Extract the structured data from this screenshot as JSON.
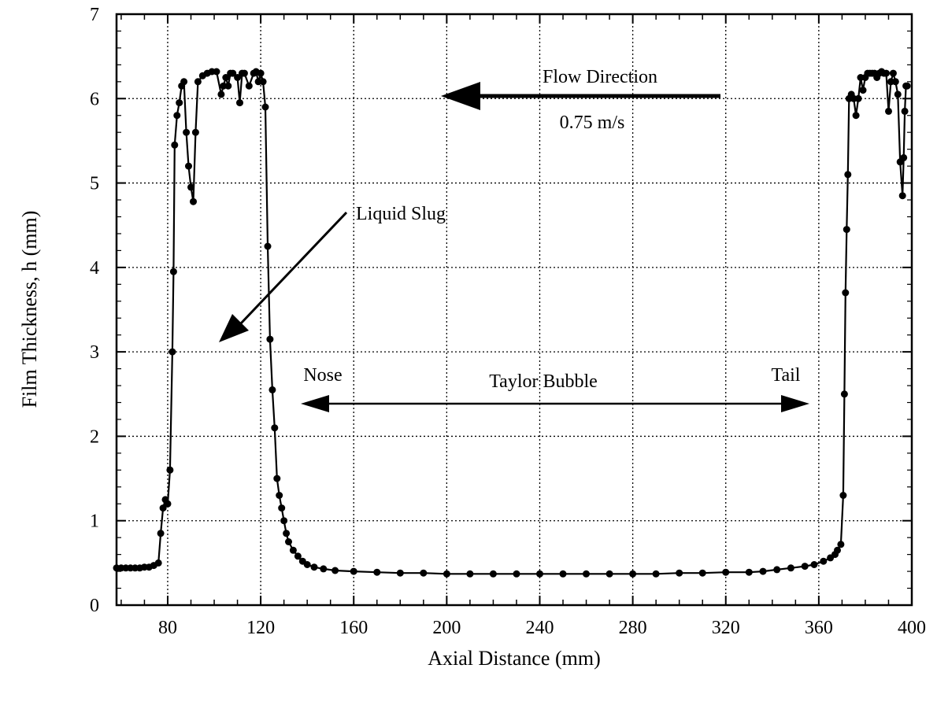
{
  "chart_data": {
    "type": "line",
    "title": "",
    "xlabel": "Axial Distance (mm)",
    "ylabel": "Film Thickness, h  (mm)",
    "xlim": [
      58,
      400
    ],
    "ylim": [
      0,
      7
    ],
    "xticks": [
      80,
      120,
      160,
      200,
      240,
      280,
      320,
      360,
      400
    ],
    "yticks": [
      0,
      1,
      2,
      3,
      4,
      5,
      6,
      7
    ],
    "grid": true,
    "series": [
      {
        "color": "#000000",
        "marker": "circle",
        "points": [
          [
            58,
            0.44
          ],
          [
            60,
            0.44
          ],
          [
            62,
            0.44
          ],
          [
            64,
            0.44
          ],
          [
            66,
            0.44
          ],
          [
            68,
            0.44
          ],
          [
            70,
            0.45
          ],
          [
            72,
            0.45
          ],
          [
            74,
            0.47
          ],
          [
            76,
            0.5
          ],
          [
            77,
            0.85
          ],
          [
            78,
            1.15
          ],
          [
            79,
            1.25
          ],
          [
            80,
            1.2
          ],
          [
            81,
            1.6
          ],
          [
            82,
            3.0
          ],
          [
            82.5,
            3.95
          ],
          [
            83,
            5.45
          ],
          [
            84,
            5.8
          ],
          [
            85,
            5.95
          ],
          [
            86,
            6.15
          ],
          [
            87,
            6.2
          ],
          [
            88,
            5.6
          ],
          [
            89,
            5.2
          ],
          [
            90,
            4.95
          ],
          [
            91,
            4.78
          ],
          [
            92,
            5.6
          ],
          [
            93,
            6.2
          ],
          [
            95,
            6.27
          ],
          [
            97,
            6.3
          ],
          [
            99,
            6.32
          ],
          [
            101,
            6.32
          ],
          [
            103,
            6.05
          ],
          [
            104,
            6.15
          ],
          [
            105,
            6.25
          ],
          [
            106,
            6.15
          ],
          [
            107,
            6.3
          ],
          [
            108,
            6.3
          ],
          [
            110,
            6.25
          ],
          [
            111,
            5.95
          ],
          [
            112,
            6.3
          ],
          [
            113,
            6.3
          ],
          [
            115,
            6.15
          ],
          [
            117,
            6.3
          ],
          [
            118,
            6.32
          ],
          [
            119,
            6.2
          ],
          [
            120,
            6.3
          ],
          [
            121,
            6.2
          ],
          [
            122,
            5.9
          ],
          [
            123,
            4.25
          ],
          [
            124,
            3.15
          ],
          [
            125,
            2.55
          ],
          [
            126,
            2.1
          ],
          [
            127,
            1.5
          ],
          [
            128,
            1.3
          ],
          [
            129,
            1.15
          ],
          [
            130,
            1.0
          ],
          [
            131,
            0.85
          ],
          [
            132,
            0.75
          ],
          [
            134,
            0.65
          ],
          [
            136,
            0.58
          ],
          [
            138,
            0.52
          ],
          [
            140,
            0.48
          ],
          [
            143,
            0.45
          ],
          [
            147,
            0.43
          ],
          [
            152,
            0.41
          ],
          [
            160,
            0.4
          ],
          [
            170,
            0.39
          ],
          [
            180,
            0.38
          ],
          [
            190,
            0.38
          ],
          [
            200,
            0.37
          ],
          [
            210,
            0.37
          ],
          [
            220,
            0.37
          ],
          [
            230,
            0.37
          ],
          [
            240,
            0.37
          ],
          [
            250,
            0.37
          ],
          [
            260,
            0.37
          ],
          [
            270,
            0.37
          ],
          [
            280,
            0.37
          ],
          [
            290,
            0.37
          ],
          [
            300,
            0.38
          ],
          [
            310,
            0.38
          ],
          [
            320,
            0.39
          ],
          [
            330,
            0.39
          ],
          [
            336,
            0.4
          ],
          [
            342,
            0.42
          ],
          [
            348,
            0.44
          ],
          [
            354,
            0.46
          ],
          [
            358,
            0.48
          ],
          [
            362,
            0.52
          ],
          [
            365,
            0.56
          ],
          [
            367,
            0.6
          ],
          [
            368,
            0.65
          ],
          [
            369.5,
            0.72
          ],
          [
            370.5,
            1.3
          ],
          [
            371,
            2.5
          ],
          [
            371.5,
            3.7
          ],
          [
            372,
            4.45
          ],
          [
            372.5,
            5.1
          ],
          [
            373,
            6.0
          ],
          [
            374,
            6.05
          ],
          [
            375,
            6.0
          ],
          [
            376,
            5.8
          ],
          [
            377,
            6.0
          ],
          [
            378,
            6.25
          ],
          [
            379,
            6.1
          ],
          [
            380,
            6.25
          ],
          [
            381,
            6.3
          ],
          [
            382,
            6.3
          ],
          [
            383,
            6.3
          ],
          [
            384,
            6.3
          ],
          [
            385,
            6.25
          ],
          [
            386,
            6.3
          ],
          [
            387,
            6.32
          ],
          [
            388,
            6.3
          ],
          [
            389,
            6.3
          ],
          [
            390,
            5.85
          ],
          [
            391,
            6.2
          ],
          [
            392,
            6.3
          ],
          [
            393,
            6.2
          ],
          [
            394,
            6.05
          ],
          [
            395,
            5.25
          ],
          [
            396,
            4.85
          ],
          [
            396.5,
            5.3
          ],
          [
            397,
            5.85
          ],
          [
            397.5,
            6.15
          ],
          [
            398,
            6.15
          ]
        ]
      }
    ],
    "annotations": [
      {
        "id": "flow-direction",
        "label": "Flow Direction",
        "sublabel": "0.75 m/s"
      },
      {
        "id": "liquid-slug",
        "label": "Liquid Slug"
      },
      {
        "id": "nose",
        "label": "Nose"
      },
      {
        "id": "taylor-bubble",
        "label": "Taylor Bubble"
      },
      {
        "id": "tail",
        "label": "Tail"
      }
    ]
  }
}
